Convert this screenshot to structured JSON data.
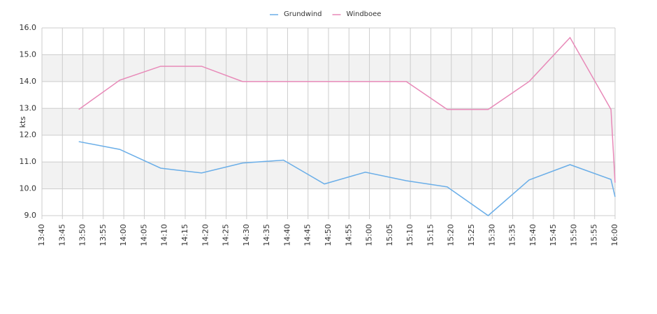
{
  "chart_data": {
    "type": "line",
    "y_label": "kts",
    "x": [
      "13:49",
      "13:59",
      "14:09",
      "14:19",
      "14:29",
      "14:39",
      "14:49",
      "14:59",
      "15:09",
      "15:19",
      "15:29",
      "15:39",
      "15:49",
      "15:59",
      "16:00"
    ],
    "series": [
      {
        "name": "Grundwind",
        "color": "#6aaee8",
        "values": [
          11.76,
          11.47,
          10.77,
          10.59,
          10.96,
          11.07,
          10.18,
          10.62,
          10.3,
          10.07,
          9.0,
          10.33,
          10.9,
          10.35,
          9.7
        ]
      },
      {
        "name": "Windboee",
        "color": "#e889b8",
        "values": [
          12.96,
          14.05,
          14.57,
          14.57,
          14.0,
          14.0,
          14.0,
          14.0,
          14.0,
          12.96,
          12.96,
          14.0,
          15.64,
          12.96,
          10.23
        ]
      }
    ],
    "xlim": [
      "13:40",
      "16:00"
    ],
    "xticks": [
      "13:40",
      "13:45",
      "13:50",
      "13:55",
      "14:00",
      "14:05",
      "14:10",
      "14:15",
      "14:20",
      "14:25",
      "14:30",
      "14:35",
      "14:40",
      "14:45",
      "14:50",
      "14:55",
      "15:00",
      "15:05",
      "15:10",
      "15:15",
      "15:20",
      "15:25",
      "15:30",
      "15:35",
      "15:40",
      "15:45",
      "15:50",
      "15:55",
      "16:00"
    ],
    "ylim": [
      9,
      16
    ],
    "yticks": [
      {
        "value": 9,
        "label": "9.0"
      },
      {
        "value": 10,
        "label": "10.0"
      },
      {
        "value": 11,
        "label": "11.0"
      },
      {
        "value": 12,
        "label": "12.0"
      },
      {
        "value": 13,
        "label": "13.0"
      },
      {
        "value": 14,
        "label": "14.0"
      },
      {
        "value": 15,
        "label": "15.0"
      },
      {
        "value": 16,
        "label": "16.0"
      }
    ],
    "grid": true,
    "banded_grid": true,
    "legend": "top"
  }
}
